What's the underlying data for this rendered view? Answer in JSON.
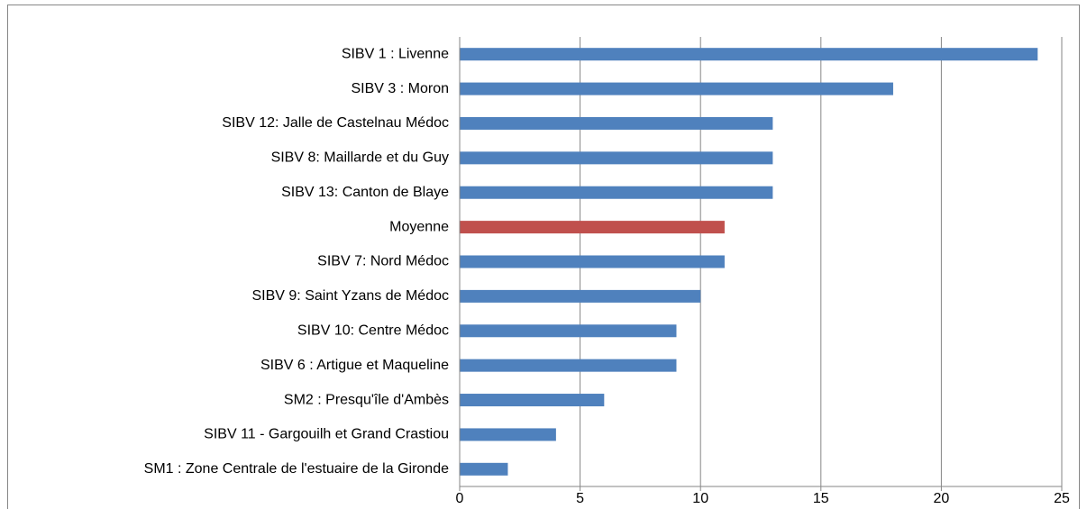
{
  "chart_data": {
    "type": "barh",
    "categories": [
      "SIBV 1 : Livenne",
      "SIBV 3 : Moron",
      "SIBV 12: Jalle de Castelnau Médoc",
      "SIBV 8: Maillarde et du Guy",
      "SIBV 13: Canton de Blaye",
      "Moyenne",
      "SIBV 7: Nord Médoc",
      "SIBV 9: Saint Yzans de Médoc",
      "SIBV 10: Centre Médoc",
      "SIBV 6 : Artigue et Maqueline",
      "SM2 : Presqu'île d'Ambès",
      "SIBV 11 - Gargouilh et Grand Crastiou",
      "SM1 : Zone Centrale de l'estuaire de la Gironde"
    ],
    "values": [
      24,
      18,
      13,
      13,
      13,
      11,
      11,
      10,
      9,
      9,
      6,
      4,
      2
    ],
    "colors": [
      "#4f81bd",
      "#4f81bd",
      "#4f81bd",
      "#4f81bd",
      "#4f81bd",
      "#c0504d",
      "#4f81bd",
      "#4f81bd",
      "#4f81bd",
      "#4f81bd",
      "#4f81bd",
      "#4f81bd",
      "#4f81bd"
    ],
    "xlim": [
      0,
      25
    ],
    "xticks": [
      0,
      5,
      10,
      15,
      20,
      25
    ],
    "grid": true
  }
}
